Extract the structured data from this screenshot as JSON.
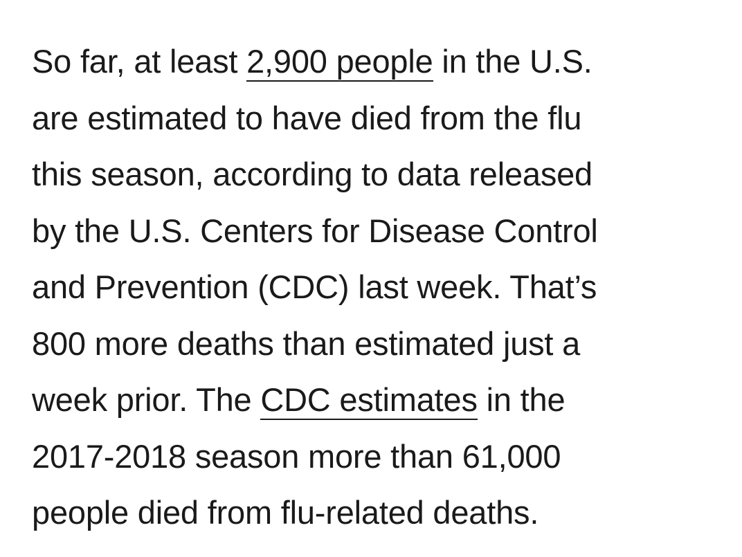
{
  "article": {
    "lines": [
      {
        "before": "So far, at least ",
        "link": "2,900 people",
        "after": " in the U.S."
      },
      {
        "text": "are estimated to have died from the flu"
      },
      {
        "text": "this season, according to data released"
      },
      {
        "text": "by the U.S. Centers for Disease Control"
      },
      {
        "text": "and Prevention (CDC) last week. That’s"
      },
      {
        "text": "800 more deaths than estimated just a"
      },
      {
        "before": "week prior. The ",
        "link": "CDC estimates",
        "after": " in the"
      },
      {
        "text": "2017-2018 season more than 61,000"
      },
      {
        "text": "people died from flu-related deaths."
      }
    ]
  }
}
